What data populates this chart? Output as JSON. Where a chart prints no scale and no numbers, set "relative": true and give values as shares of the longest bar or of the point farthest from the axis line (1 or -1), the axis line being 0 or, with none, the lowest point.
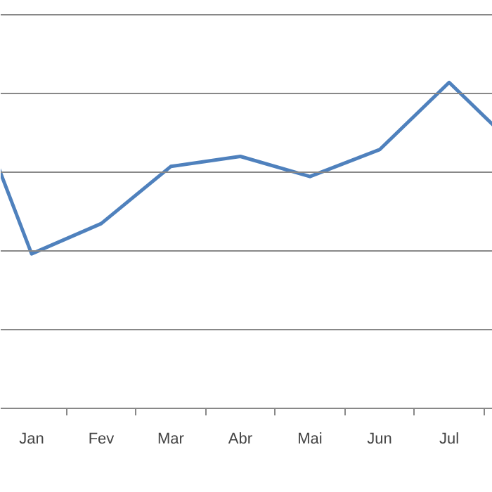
{
  "chart_data": {
    "type": "line",
    "relative": true,
    "categories": [
      null,
      "Jan",
      "Fev",
      "Mar",
      "Abr",
      "Mai",
      "Jun",
      "Jul",
      null
    ],
    "series": [
      {
        "color": "#4f81bd",
        "values": [
          1.0,
          0.46,
          0.55,
          0.72,
          0.75,
          0.69,
          0.77,
          0.97,
          0.77
        ]
      }
    ],
    "ref_lines": [
      {
        "axis": "y",
        "value": 0.2343,
        "color": "#888888"
      },
      {
        "axis": "y",
        "value": 0.4686,
        "color": "#888888"
      },
      {
        "axis": "y",
        "value": 0.7029,
        "color": "#888888"
      },
      {
        "axis": "y",
        "value": 0.9372,
        "color": "#888888"
      },
      {
        "axis": "y",
        "value": 1.1715,
        "color": "#888888"
      }
    ],
    "marker": "none",
    "line_style": "solid"
  }
}
